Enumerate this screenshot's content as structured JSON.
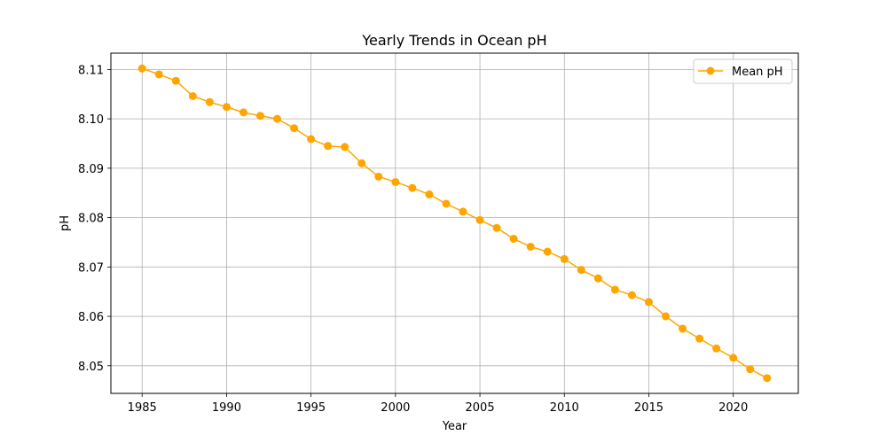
{
  "chart_data": {
    "type": "line",
    "title": "Yearly Trends in Ocean pH",
    "xlabel": "Year",
    "ylabel": "pH",
    "xlim": [
      1983.15,
      2023.85
    ],
    "ylim": [
      8.0444,
      8.1133
    ],
    "xticks": [
      1985,
      1990,
      1995,
      2000,
      2005,
      2010,
      2015,
      2020
    ],
    "yticks": [
      8.05,
      8.06,
      8.07,
      8.08,
      8.09,
      8.1,
      8.11
    ],
    "ytick_labels": [
      "8.05",
      "8.06",
      "8.07",
      "8.08",
      "8.09",
      "8.10",
      "8.11"
    ],
    "grid": true,
    "legend_position": "top-right",
    "colors": {
      "series": "#FFA500",
      "grid": "#b0b0b0",
      "axis": "#000000"
    },
    "series": [
      {
        "name": "Mean pH",
        "x": [
          1985,
          1986,
          1987,
          1988,
          1989,
          1990,
          1991,
          1992,
          1993,
          1994,
          1995,
          1996,
          1997,
          1998,
          1999,
          2000,
          2001,
          2002,
          2003,
          2004,
          2005,
          2006,
          2007,
          2008,
          2009,
          2010,
          2011,
          2012,
          2013,
          2014,
          2015,
          2016,
          2017,
          2018,
          2019,
          2020,
          2021,
          2022
        ],
        "values": [
          8.1102,
          8.109,
          8.1077,
          8.1046,
          8.1034,
          8.1024,
          8.1013,
          8.1006,
          8.1,
          8.0981,
          8.0959,
          8.0945,
          8.0943,
          8.091,
          8.0883,
          8.0872,
          8.086,
          8.0847,
          8.0828,
          8.0812,
          8.0795,
          8.0779,
          8.0757,
          8.0741,
          8.0731,
          8.0716,
          8.0694,
          8.0677,
          8.0654,
          8.0643,
          8.0629,
          8.06,
          8.0575,
          8.0555,
          8.0535,
          8.0516,
          8.0493,
          8.0475
        ]
      }
    ]
  }
}
